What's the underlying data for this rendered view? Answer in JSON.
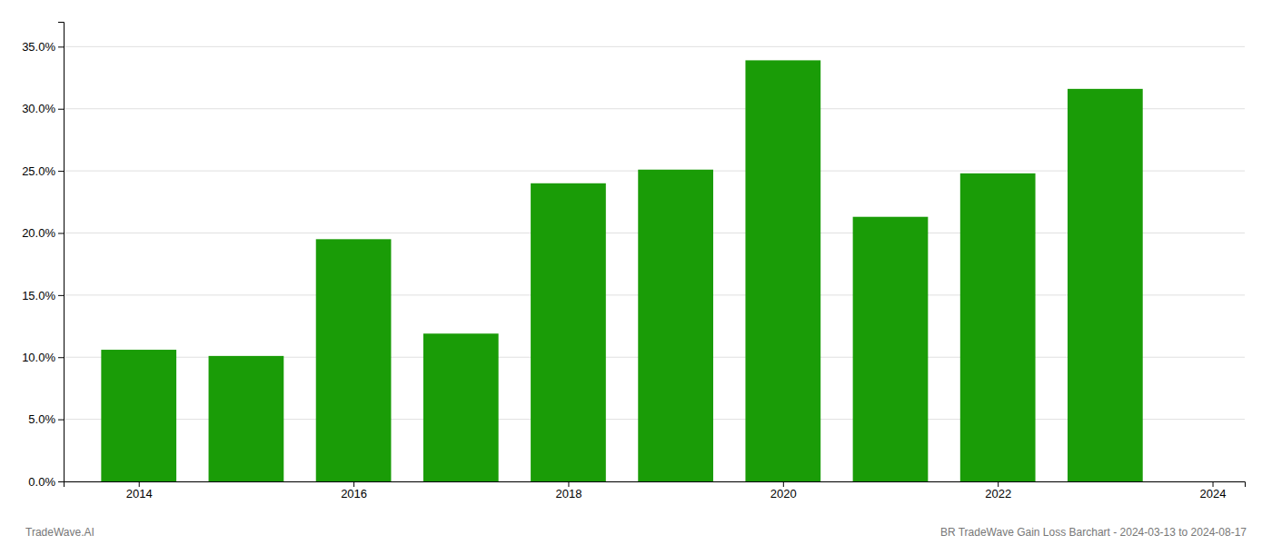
{
  "chart_data": {
    "type": "bar",
    "x": [
      2014,
      2015,
      2016,
      2017,
      2018,
      2019,
      2020,
      2021,
      2022,
      2023
    ],
    "values": [
      0.106,
      0.101,
      0.195,
      0.119,
      0.24,
      0.251,
      0.339,
      0.213,
      0.248,
      0.316
    ],
    "color": "#1a9c07",
    "xlim": [
      2013.3,
      2024.3
    ],
    "xticks": [
      2014,
      2016,
      2018,
      2020,
      2022,
      2024
    ],
    "ylim": [
      0.0,
      0.37
    ],
    "yticks": [
      {
        "value": 0.0,
        "label": "0.0%"
      },
      {
        "value": 0.05,
        "label": "5.0%"
      },
      {
        "value": 0.1,
        "label": "10.0%"
      },
      {
        "value": 0.15,
        "label": "15.0%"
      },
      {
        "value": 0.2,
        "label": "20.0%"
      },
      {
        "value": 0.25,
        "label": "25.0%"
      },
      {
        "value": 0.3,
        "label": "30.0%"
      },
      {
        "value": 0.35,
        "label": "35.0%"
      }
    ],
    "grid": true,
    "annotations": [
      "TradeWave.AI",
      "BR TradeWave Gain Loss Barchart - 2024-03-13 to 2024-08-17"
    ]
  }
}
